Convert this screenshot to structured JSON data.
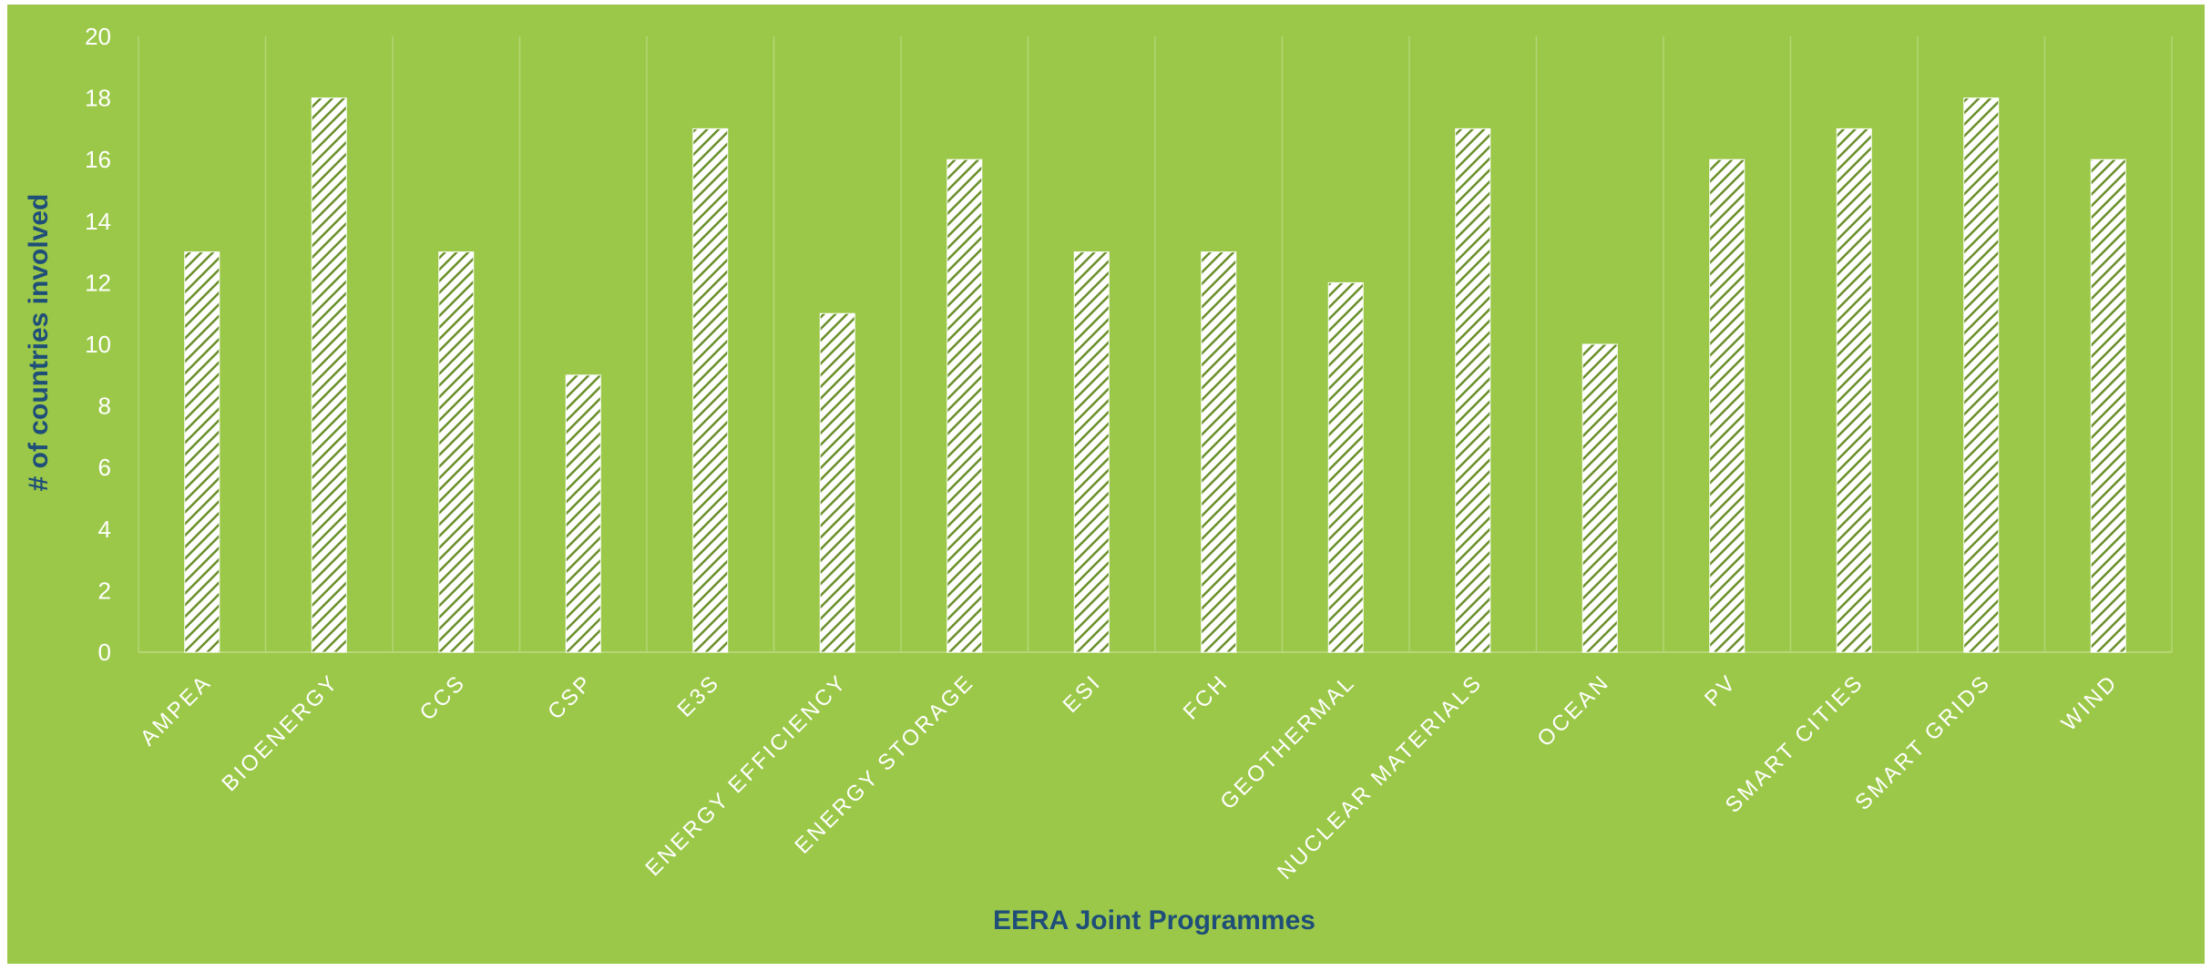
{
  "colors": {
    "background": "#9bc848",
    "bar_fill": "#ffffff",
    "bar_hatch": "#6a8f2a",
    "gridline": "#b5d676",
    "tick_text": "#ffffff",
    "axis_title": "#1f4e79"
  },
  "chart_data": {
    "type": "bar",
    "title": "",
    "xlabel": "EERA Joint Programmes",
    "ylabel": "# of countries involved",
    "ylim": [
      0,
      20
    ],
    "y_ticks": [
      0,
      2,
      4,
      6,
      8,
      10,
      12,
      14,
      16,
      18,
      20
    ],
    "grid": "vertical category separators",
    "legend": "none",
    "bar_pattern": "diagonal hatch",
    "categories": [
      "AMPEA",
      "BIOENERGY",
      "CCS",
      "CSP",
      "E3S",
      "ENERGY EFFICIENCY",
      "ENERGY STORAGE",
      "ESI",
      "FCH",
      "GEOTHERMAL",
      "NUCLEAR MATERIALS",
      "OCEAN",
      "PV",
      "SMART CITIES",
      "SMART GRIDS",
      "WIND"
    ],
    "values": [
      13,
      18,
      13,
      9,
      17,
      11,
      16,
      13,
      13,
      12,
      17,
      10,
      16,
      17,
      18,
      16
    ]
  }
}
